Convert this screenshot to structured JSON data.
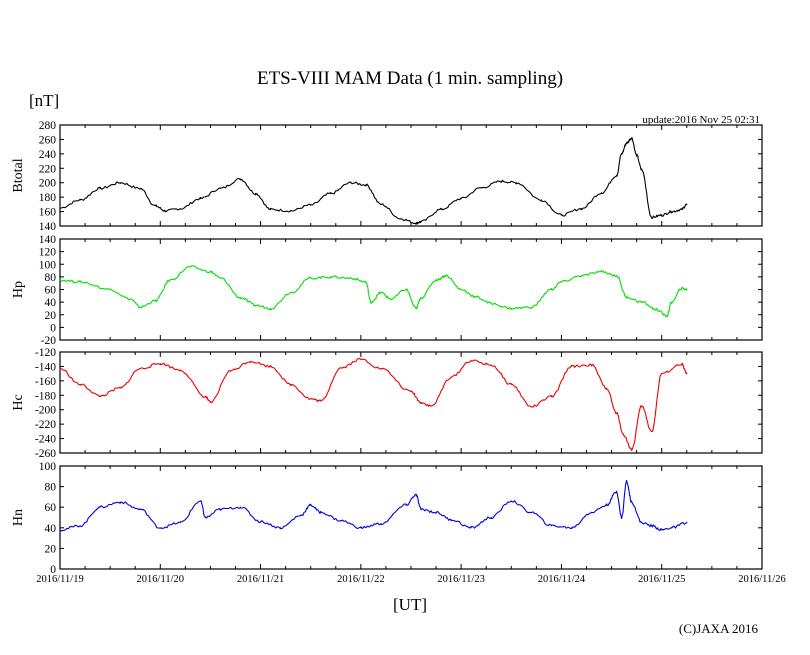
{
  "chart_data": {
    "type": "line",
    "title": "ETS-VIII MAM Data (1 min. sampling)",
    "unit_label": "[nT]",
    "update_text": "update:2016 Nov 25 02:31",
    "xlabel": "[UT]",
    "copyright": "(C)JAXA 2016",
    "x_ticks": [
      "2016/11/19",
      "2016/11/20",
      "2016/11/21",
      "2016/11/22",
      "2016/11/23",
      "2016/11/24",
      "2016/11/25",
      "2016/11/26"
    ],
    "xlim_days": [
      0,
      7
    ],
    "x_unit": "days since 2016/11/19 00:00 UT",
    "minor_ticks_per_day": 4,
    "panels": [
      {
        "name": "Btotal",
        "ylabel": "Btotal",
        "color": "#000000",
        "ylim": [
          140,
          280
        ],
        "yticks": [
          "140",
          "160",
          "180",
          "200",
          "220",
          "240",
          "260",
          "280"
        ],
        "ytick_values": [
          140,
          160,
          180,
          200,
          220,
          240,
          260,
          280
        ],
        "x": [
          0,
          0.2,
          0.4,
          0.6,
          0.8,
          0.95,
          1.05,
          1.2,
          1.4,
          1.6,
          1.8,
          1.95,
          2.1,
          2.3,
          2.5,
          2.7,
          2.9,
          3.05,
          3.2,
          3.4,
          3.55,
          3.6,
          3.8,
          4.0,
          4.2,
          4.4,
          4.55,
          4.8,
          5.0,
          5.2,
          5.4,
          5.55,
          5.6,
          5.65,
          5.7,
          5.75,
          5.8,
          5.9,
          6.0,
          6.1,
          6.2,
          6.25
        ],
        "y": [
          165,
          176,
          192,
          200,
          192,
          168,
          161,
          164,
          178,
          192,
          205,
          185,
          163,
          161,
          169,
          185,
          200,
          197,
          170,
          150,
          144,
          146,
          163,
          178,
          193,
          202,
          200,
          176,
          155,
          164,
          186,
          210,
          240,
          255,
          262,
          238,
          218,
          152,
          155,
          160,
          163,
          170
        ]
      },
      {
        "name": "Hp",
        "ylabel": "Hp",
        "color": "#00e000",
        "ylim": [
          -20,
          140
        ],
        "yticks": [
          "-20",
          "0",
          "20",
          "40",
          "60",
          "80",
          "100",
          "120",
          "140"
        ],
        "ytick_values": [
          -20,
          0,
          20,
          40,
          60,
          80,
          100,
          120,
          140
        ],
        "x": [
          0,
          0.2,
          0.5,
          0.7,
          0.8,
          0.95,
          1.1,
          1.3,
          1.5,
          1.6,
          1.8,
          1.95,
          2.1,
          2.3,
          2.5,
          2.7,
          2.9,
          3.05,
          3.1,
          3.2,
          3.3,
          3.45,
          3.55,
          3.6,
          3.75,
          3.85,
          4.0,
          4.15,
          4.3,
          4.5,
          4.7,
          4.9,
          5.0,
          5.2,
          5.4,
          5.55,
          5.65,
          5.8,
          5.95,
          6.05,
          6.1,
          6.2,
          6.25
        ],
        "y": [
          75,
          72,
          60,
          45,
          32,
          42,
          75,
          96,
          88,
          78,
          47,
          35,
          30,
          55,
          78,
          80,
          78,
          72,
          40,
          55,
          45,
          60,
          30,
          47,
          75,
          82,
          60,
          48,
          38,
          30,
          32,
          60,
          72,
          82,
          88,
          82,
          48,
          40,
          28,
          18,
          40,
          62,
          60
        ]
      },
      {
        "name": "Hc",
        "ylabel": "Hc",
        "color": "#ee0000",
        "ylim": [
          -260,
          -120
        ],
        "yticks": [
          "-260",
          "-240",
          "-220",
          "-200",
          "-180",
          "-160",
          "-140",
          "-120"
        ],
        "ytick_values": [
          -260,
          -240,
          -220,
          -200,
          -180,
          -160,
          -140,
          -120
        ],
        "x": [
          0,
          0.2,
          0.4,
          0.6,
          0.8,
          1.0,
          1.2,
          1.45,
          1.5,
          1.7,
          1.9,
          2.1,
          2.3,
          2.5,
          2.6,
          2.8,
          3.0,
          3.2,
          3.5,
          3.6,
          3.7,
          3.9,
          4.1,
          4.3,
          4.5,
          4.7,
          4.9,
          5.1,
          5.3,
          5.45,
          5.55,
          5.62,
          5.7,
          5.8,
          5.9,
          6.0,
          6.2,
          6.25
        ],
        "y": [
          -143,
          -165,
          -181,
          -170,
          -143,
          -136,
          -145,
          -182,
          -190,
          -146,
          -133,
          -140,
          -165,
          -185,
          -188,
          -142,
          -130,
          -143,
          -175,
          -190,
          -195,
          -155,
          -132,
          -138,
          -165,
          -196,
          -182,
          -140,
          -138,
          -170,
          -205,
          -235,
          -255,
          -195,
          -230,
          -150,
          -137,
          -150
        ]
      },
      {
        "name": "Hn",
        "ylabel": "Hn",
        "color": "#0000dd",
        "ylim": [
          0,
          100
        ],
        "yticks": [
          "0",
          "20",
          "40",
          "60",
          "80",
          "100"
        ],
        "ytick_values": [
          0,
          20,
          40,
          60,
          80,
          100
        ],
        "x": [
          0,
          0.2,
          0.4,
          0.6,
          0.8,
          1.0,
          1.2,
          1.4,
          1.45,
          1.6,
          1.8,
          2.0,
          2.2,
          2.4,
          2.5,
          2.6,
          2.8,
          3.0,
          3.2,
          3.45,
          3.55,
          3.6,
          3.75,
          3.9,
          4.1,
          4.3,
          4.5,
          4.7,
          4.9,
          5.1,
          5.3,
          5.45,
          5.55,
          5.6,
          5.65,
          5.7,
          5.8,
          5.9,
          6.0,
          6.1,
          6.25
        ],
        "y": [
          38,
          42,
          60,
          65,
          58,
          40,
          45,
          66,
          50,
          58,
          60,
          46,
          40,
          52,
          62,
          55,
          47,
          40,
          44,
          62,
          72,
          58,
          55,
          48,
          40,
          50,
          66,
          55,
          42,
          40,
          55,
          62,
          75,
          50,
          85,
          65,
          45,
          42,
          38,
          40,
          45
        ]
      }
    ]
  }
}
